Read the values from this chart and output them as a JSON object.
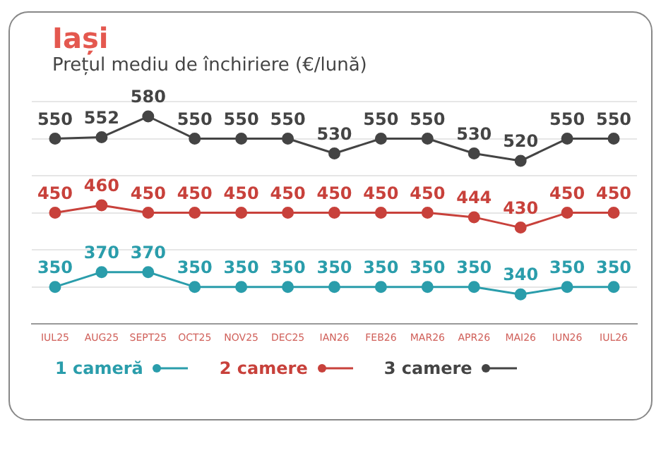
{
  "chart_data": {
    "type": "line",
    "title": "Iași",
    "subtitle": "Prețul mediu de închiriere (€/lună)",
    "categories": [
      "IUL25",
      "AUG25",
      "SEPT25",
      "OCT25",
      "NOV25",
      "DEC25",
      "IAN26",
      "FEB26",
      "MAR26",
      "APR26",
      "MAI26",
      "IUN26",
      "IUL26"
    ],
    "series": [
      {
        "name": "1 cameră",
        "color": "#2a9dab",
        "values": [
          350,
          370,
          370,
          350,
          350,
          350,
          350,
          350,
          350,
          350,
          340,
          350,
          350
        ]
      },
      {
        "name": "2 camere",
        "color": "#c8413b",
        "values": [
          450,
          460,
          450,
          450,
          450,
          450,
          450,
          450,
          450,
          444,
          430,
          450,
          450
        ]
      },
      {
        "name": "3 camere",
        "color": "#444444",
        "values": [
          550,
          552,
          580,
          550,
          550,
          550,
          530,
          550,
          550,
          530,
          520,
          550,
          550
        ]
      }
    ],
    "data_labels": true,
    "marker": "circle",
    "line_style": "solid",
    "grid": "y",
    "legend": "bottom left",
    "tick_labels": "x"
  }
}
